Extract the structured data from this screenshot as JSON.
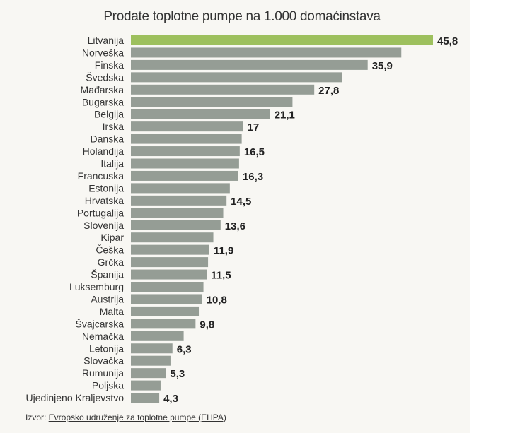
{
  "chart_data": {
    "type": "bar",
    "orientation": "horizontal",
    "title": "Prodate toplotne pumpe na 1.000 domaćinstava",
    "categories": [
      "Litvanija",
      "Norveška",
      "Finska",
      "Švedska",
      "Mađarska",
      "Bugarska",
      "Belgija",
      "Irska",
      "Danska",
      "Holandija",
      "Italija",
      "Francuska",
      "Estonija",
      "Hrvatska",
      "Portugalija",
      "Slovenija",
      "Kipar",
      "Češka",
      "Grčka",
      "Španija",
      "Luksemburg",
      "Austrija",
      "Malta",
      "Švajcarska",
      "Nemačka",
      "Letonija",
      "Slovačka",
      "Rumunija",
      "Poljska",
      "Ujedinjeno Kraljevstvo"
    ],
    "values": [
      45.8,
      41.0,
      35.9,
      32.0,
      27.8,
      24.5,
      21.1,
      17.0,
      16.8,
      16.5,
      16.4,
      16.3,
      15.0,
      14.5,
      14.0,
      13.6,
      12.5,
      11.9,
      11.7,
      11.5,
      11.0,
      10.8,
      10.3,
      9.8,
      8.0,
      6.3,
      6.0,
      5.3,
      4.5,
      4.3
    ],
    "data_labels": [
      "45,8",
      "",
      "35,9",
      "",
      "27,8",
      "",
      "21,1",
      "17",
      "",
      "16,5",
      "",
      "16,3",
      "",
      "14,5",
      "",
      "13,6",
      "",
      "11,9",
      "",
      "11,5",
      "",
      "10,8",
      "",
      "9,8",
      "",
      "6,3",
      "",
      "5,3",
      "",
      "4,3"
    ],
    "highlight_index": 0,
    "xlim": [
      0,
      45.8
    ],
    "grid": false,
    "legend": "none",
    "colors": {
      "highlight": "#9dc05d",
      "bar": "#959d95",
      "card_background": "#f8f7f3"
    }
  },
  "source": {
    "prefix": "Izvor: ",
    "link_text": "Evropsko udruženje za toplotne pumpe (EHPA)"
  }
}
